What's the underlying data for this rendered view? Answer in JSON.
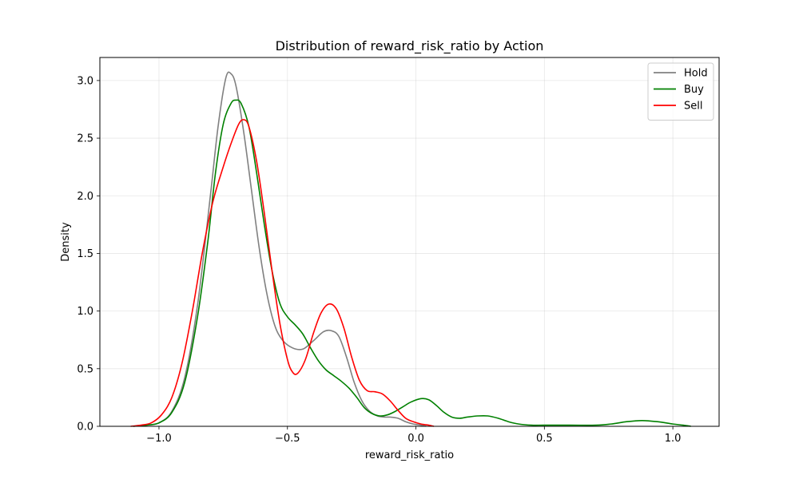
{
  "chart_data": {
    "type": "line",
    "title": "Distribution of reward_risk_ratio by Action",
    "xlabel": "reward_risk_ratio",
    "ylabel": "Density",
    "xlim": [
      -1.23,
      1.18
    ],
    "ylim": [
      0,
      3.2
    ],
    "x_ticks": [
      -1.0,
      -0.5,
      0.0,
      0.5,
      1.0
    ],
    "x_tick_labels": [
      "−1.0",
      "−0.5",
      "0.0",
      "0.5",
      "1.0"
    ],
    "y_ticks": [
      0.0,
      0.5,
      1.0,
      1.5,
      2.0,
      2.5,
      3.0
    ],
    "y_tick_labels": [
      "0.0",
      "0.5",
      "1.0",
      "1.5",
      "2.0",
      "2.5",
      "3.0"
    ],
    "grid": true,
    "legend_position": "top-right",
    "series": [
      {
        "name": "Hold",
        "color": "#808080",
        "points": [
          [
            -1.1,
            0.0
          ],
          [
            -1.05,
            0.01
          ],
          [
            -1.0,
            0.03
          ],
          [
            -0.95,
            0.13
          ],
          [
            -0.9,
            0.42
          ],
          [
            -0.85,
            1.05
          ],
          [
            -0.8,
            2.0
          ],
          [
            -0.77,
            2.6
          ],
          [
            -0.74,
            3.02
          ],
          [
            -0.72,
            3.06
          ],
          [
            -0.7,
            2.95
          ],
          [
            -0.67,
            2.55
          ],
          [
            -0.64,
            2.05
          ],
          [
            -0.61,
            1.55
          ],
          [
            -0.58,
            1.15
          ],
          [
            -0.55,
            0.88
          ],
          [
            -0.52,
            0.75
          ],
          [
            -0.48,
            0.68
          ],
          [
            -0.44,
            0.67
          ],
          [
            -0.4,
            0.74
          ],
          [
            -0.36,
            0.82
          ],
          [
            -0.33,
            0.83
          ],
          [
            -0.3,
            0.78
          ],
          [
            -0.27,
            0.6
          ],
          [
            -0.24,
            0.38
          ],
          [
            -0.21,
            0.22
          ],
          [
            -0.18,
            0.13
          ],
          [
            -0.15,
            0.09
          ],
          [
            -0.12,
            0.08
          ],
          [
            -0.1,
            0.08
          ],
          [
            -0.07,
            0.07
          ],
          [
            -0.04,
            0.04
          ],
          [
            -0.01,
            0.02
          ],
          [
            0.02,
            0.01
          ],
          [
            0.04,
            0.0
          ]
        ]
      },
      {
        "name": "Buy",
        "color": "#008000",
        "points": [
          [
            -1.1,
            0.0
          ],
          [
            -1.05,
            0.01
          ],
          [
            -1.0,
            0.03
          ],
          [
            -0.95,
            0.12
          ],
          [
            -0.9,
            0.38
          ],
          [
            -0.85,
            0.95
          ],
          [
            -0.81,
            1.6
          ],
          [
            -0.78,
            2.2
          ],
          [
            -0.75,
            2.62
          ],
          [
            -0.72,
            2.8
          ],
          [
            -0.7,
            2.83
          ],
          [
            -0.68,
            2.8
          ],
          [
            -0.65,
            2.6
          ],
          [
            -0.62,
            2.2
          ],
          [
            -0.59,
            1.75
          ],
          [
            -0.56,
            1.35
          ],
          [
            -0.53,
            1.07
          ],
          [
            -0.5,
            0.95
          ],
          [
            -0.47,
            0.88
          ],
          [
            -0.44,
            0.8
          ],
          [
            -0.41,
            0.68
          ],
          [
            -0.38,
            0.57
          ],
          [
            -0.35,
            0.49
          ],
          [
            -0.32,
            0.44
          ],
          [
            -0.29,
            0.39
          ],
          [
            -0.26,
            0.33
          ],
          [
            -0.23,
            0.25
          ],
          [
            -0.2,
            0.16
          ],
          [
            -0.17,
            0.11
          ],
          [
            -0.14,
            0.09
          ],
          [
            -0.11,
            0.1
          ],
          [
            -0.08,
            0.13
          ],
          [
            -0.05,
            0.17
          ],
          [
            -0.02,
            0.21
          ],
          [
            0.02,
            0.24
          ],
          [
            0.05,
            0.23
          ],
          [
            0.08,
            0.18
          ],
          [
            0.11,
            0.12
          ],
          [
            0.14,
            0.08
          ],
          [
            0.17,
            0.07
          ],
          [
            0.2,
            0.08
          ],
          [
            0.24,
            0.09
          ],
          [
            0.28,
            0.09
          ],
          [
            0.32,
            0.07
          ],
          [
            0.36,
            0.04
          ],
          [
            0.4,
            0.02
          ],
          [
            0.45,
            0.01
          ],
          [
            0.5,
            0.01
          ],
          [
            0.6,
            0.01
          ],
          [
            0.7,
            0.01
          ],
          [
            0.76,
            0.02
          ],
          [
            0.82,
            0.04
          ],
          [
            0.88,
            0.05
          ],
          [
            0.94,
            0.04
          ],
          [
            1.0,
            0.02
          ],
          [
            1.04,
            0.01
          ],
          [
            1.07,
            0.0
          ]
        ]
      },
      {
        "name": "Sell",
        "color": "#ff0000",
        "points": [
          [
            -1.11,
            0.0
          ],
          [
            -1.07,
            0.01
          ],
          [
            -1.03,
            0.03
          ],
          [
            -0.99,
            0.1
          ],
          [
            -0.95,
            0.25
          ],
          [
            -0.91,
            0.55
          ],
          [
            -0.87,
            1.0
          ],
          [
            -0.83,
            1.52
          ],
          [
            -0.79,
            1.95
          ],
          [
            -0.75,
            2.25
          ],
          [
            -0.72,
            2.45
          ],
          [
            -0.69,
            2.62
          ],
          [
            -0.67,
            2.66
          ],
          [
            -0.65,
            2.6
          ],
          [
            -0.62,
            2.3
          ],
          [
            -0.59,
            1.85
          ],
          [
            -0.56,
            1.35
          ],
          [
            -0.53,
            0.9
          ],
          [
            -0.5,
            0.58
          ],
          [
            -0.48,
            0.47
          ],
          [
            -0.46,
            0.46
          ],
          [
            -0.43,
            0.58
          ],
          [
            -0.4,
            0.8
          ],
          [
            -0.37,
            0.98
          ],
          [
            -0.34,
            1.06
          ],
          [
            -0.31,
            1.02
          ],
          [
            -0.28,
            0.85
          ],
          [
            -0.25,
            0.6
          ],
          [
            -0.22,
            0.4
          ],
          [
            -0.19,
            0.31
          ],
          [
            -0.16,
            0.3
          ],
          [
            -0.13,
            0.28
          ],
          [
            -0.1,
            0.22
          ],
          [
            -0.07,
            0.14
          ],
          [
            -0.04,
            0.07
          ],
          [
            -0.01,
            0.04
          ],
          [
            0.02,
            0.02
          ],
          [
            0.05,
            0.01
          ],
          [
            0.07,
            0.0
          ]
        ]
      }
    ]
  }
}
